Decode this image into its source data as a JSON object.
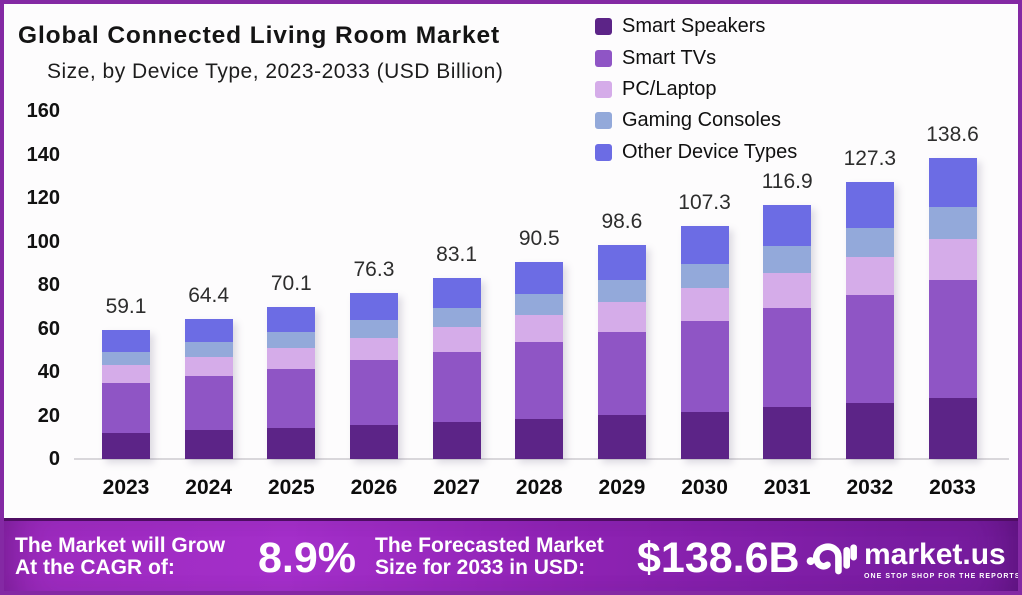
{
  "title": "Global Connected Living Room Market",
  "subtitle": "Size, by Device Type, 2023-2033 (USD Billion)",
  "chart_data": {
    "type": "bar",
    "stacked": true,
    "title": "Global Connected Living Room Market Size, by Device Type, 2023-2033 (USD Billion)",
    "categories": [
      "2023",
      "2024",
      "2025",
      "2026",
      "2027",
      "2028",
      "2029",
      "2030",
      "2031",
      "2032",
      "2033"
    ],
    "totals": [
      59.1,
      64.4,
      70.1,
      76.3,
      83.1,
      90.5,
      98.6,
      107.3,
      116.9,
      127.3,
      138.6
    ],
    "series": [
      {
        "name": "Smart Speakers",
        "color": "#5c2487",
        "values": [
          12.0,
          13.1,
          14.2,
          15.5,
          16.9,
          18.4,
          20.0,
          21.8,
          23.7,
          25.8,
          28.1
        ]
      },
      {
        "name": "Smart TVs",
        "color": "#8f55c5",
        "values": [
          23.0,
          25.1,
          27.3,
          29.8,
          32.4,
          35.3,
          38.5,
          41.8,
          45.6,
          49.6,
          54.1
        ]
      },
      {
        "name": "PC/Laptop",
        "color": "#d5ace9",
        "values": [
          8.2,
          8.9,
          9.7,
          10.5,
          11.5,
          12.5,
          13.6,
          14.8,
          16.1,
          17.6,
          19.1
        ]
      },
      {
        "name": "Gaming Consoles",
        "color": "#93a9da",
        "values": [
          6.2,
          6.8,
          7.4,
          8.0,
          8.7,
          9.5,
          10.4,
          11.3,
          12.3,
          13.4,
          14.6
        ]
      },
      {
        "name": "Other Device Types",
        "color": "#6c6ce4",
        "values": [
          9.7,
          10.5,
          11.5,
          12.5,
          13.6,
          14.8,
          16.1,
          17.6,
          19.2,
          20.9,
          22.7
        ]
      }
    ],
    "ylim": [
      0,
      160
    ],
    "yticks": [
      0,
      20,
      40,
      60,
      80,
      100,
      120,
      140,
      160
    ],
    "legend_position": "top-right",
    "grid": false
  },
  "banner": {
    "cagr_line1": "The Market will Grow",
    "cagr_line2": "At the CAGR of:",
    "cagr_value": "8.9%",
    "forecast_line1": "The Forecasted Market",
    "forecast_line2": "Size for 2033 in USD:",
    "forecast_value": "$138.6B",
    "brand_name": "market.us",
    "brand_tagline": "ONE STOP SHOP FOR THE REPORTS"
  },
  "colors": {
    "border": "#8429a4",
    "background": "#fdfcfd",
    "banner_left": "#9c2abd",
    "banner_right": "#741b9b",
    "baseline": "#d9d7db"
  }
}
